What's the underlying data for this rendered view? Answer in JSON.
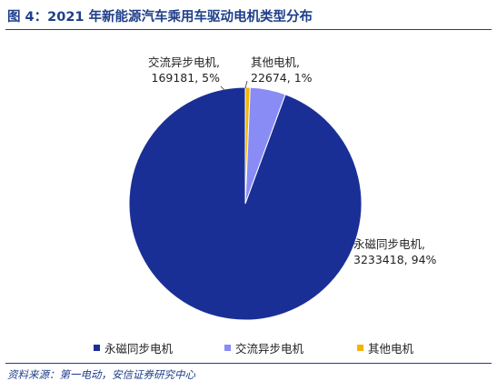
{
  "figure": {
    "title": "图 4：2021 年新能源汽车乘用车驱动电机类型分布",
    "source": "资料来源：第一电动，安信证券研究中心"
  },
  "chart_data": {
    "type": "pie",
    "title": "",
    "slices": [
      {
        "name": "永磁同步电机",
        "value": 3233418,
        "percent": "94%",
        "label_line1": "永磁同步电机,",
        "label_line2": "3233418, 94%",
        "color": "#1a2f96"
      },
      {
        "name": "交流异步电机",
        "value": 169181,
        "percent": "5%",
        "label_line1": "交流异步电机,",
        "label_line2": "169181, 5%",
        "color": "#8a8cf6"
      },
      {
        "name": "其他电机",
        "value": 22674,
        "percent": "1%",
        "label_line1": "其他电机,",
        "label_line2": "22674, 1%",
        "color": "#f4b400"
      }
    ],
    "legend": {
      "position": "bottom",
      "entries": [
        "永磁同步电机",
        "交流异步电机",
        "其他电机"
      ]
    }
  }
}
